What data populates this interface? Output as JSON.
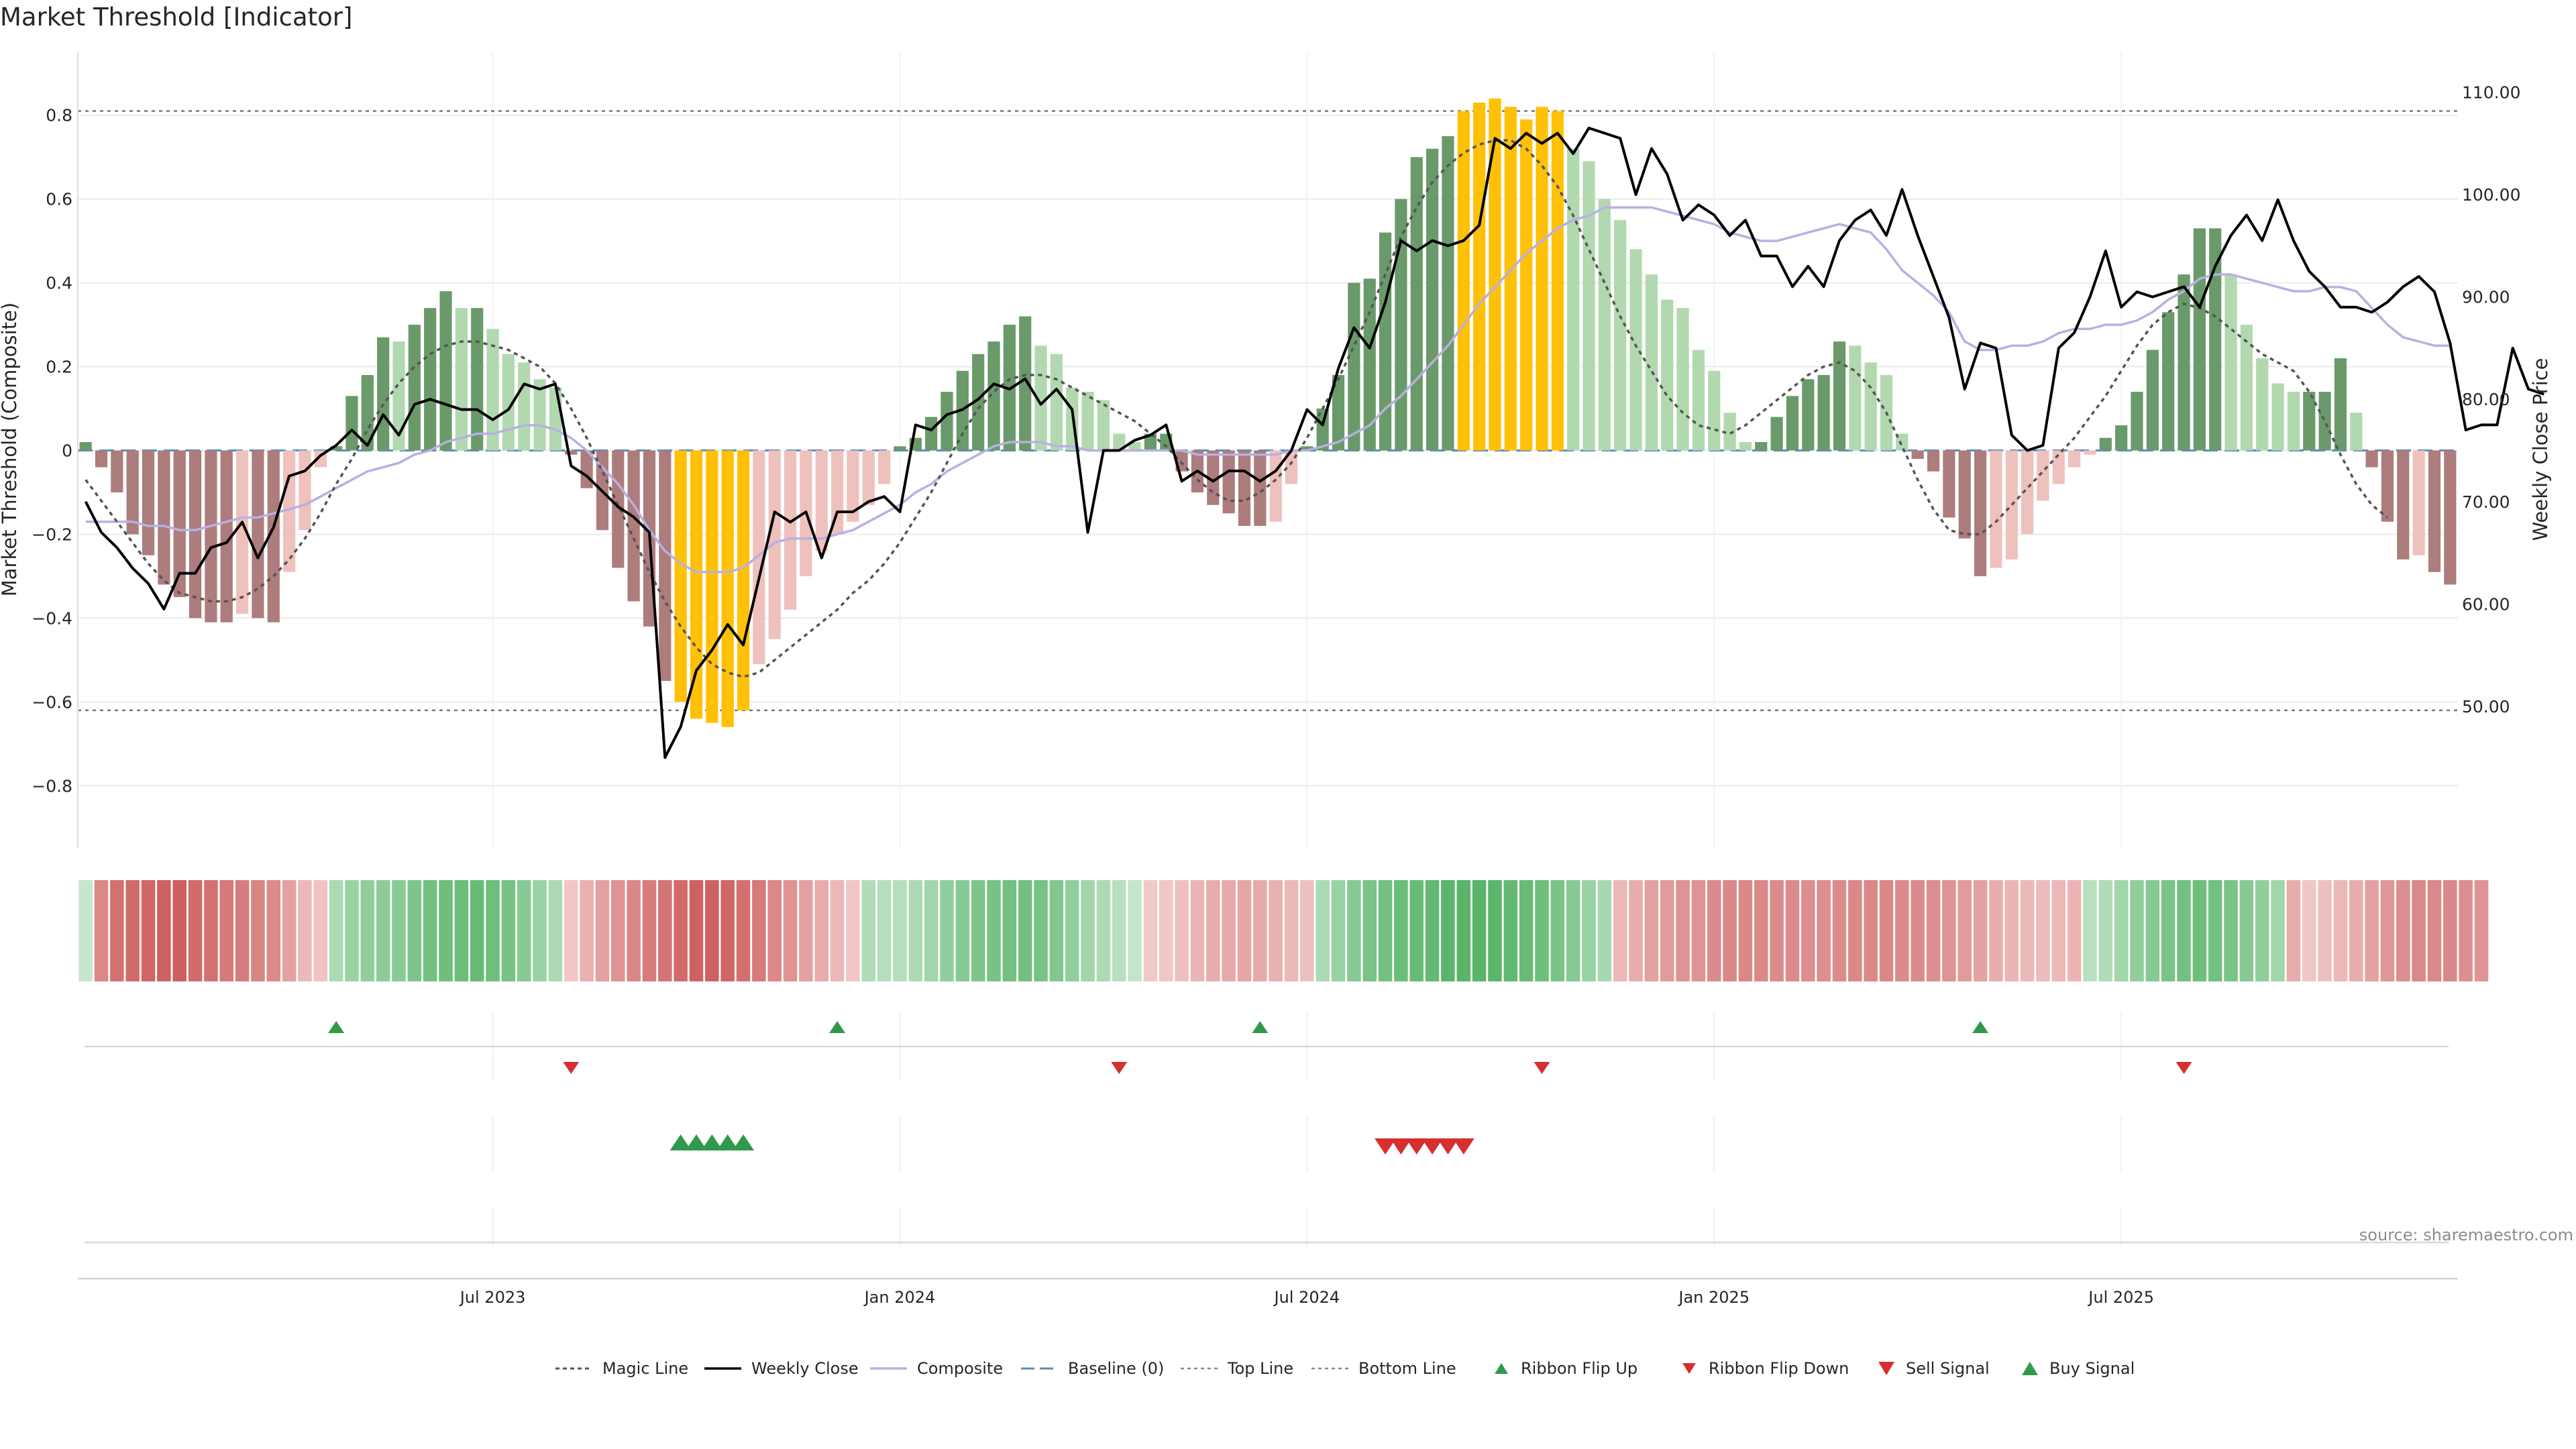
{
  "chart_data": {
    "type": "bar",
    "title": "Market Threshold [Indicator]",
    "ylabel": "Market Threshold (Composite)",
    "y2label": "Weekly Close Price",
    "ylim": [
      -0.95,
      0.95
    ],
    "y2lim": [
      36.1,
      113.9
    ],
    "yticks": [
      {
        "v": 0.8,
        "label": "0.8"
      },
      {
        "v": 0.6,
        "label": "0.6"
      },
      {
        "v": 0.4,
        "label": "0.4"
      },
      {
        "v": 0.2,
        "label": "0.2"
      },
      {
        "v": 0,
        "label": "0"
      },
      {
        "v": -0.2,
        "label": "−0.2"
      },
      {
        "v": -0.4,
        "label": "−0.4"
      },
      {
        "v": -0.6,
        "label": "−0.6"
      },
      {
        "v": -0.8,
        "label": "−0.8"
      }
    ],
    "y2ticks": [
      {
        "v": 110,
        "label": "110.00"
      },
      {
        "v": 100,
        "label": "100.00"
      },
      {
        "v": 90,
        "label": "90.00"
      },
      {
        "v": 80,
        "label": "80.00"
      },
      {
        "v": 70,
        "label": "70.00"
      },
      {
        "v": 60,
        "label": "60.00"
      },
      {
        "v": 50,
        "label": "50.00"
      }
    ],
    "xticks": [
      {
        "week": 26,
        "label": "Jul 2023"
      },
      {
        "week": 52,
        "label": "Jan 2024"
      },
      {
        "week": 78,
        "label": "Jul 2024"
      },
      {
        "week": 104,
        "label": "Jan 2025"
      },
      {
        "week": 130,
        "label": "Jul 2025"
      }
    ],
    "top_line": 0.81,
    "bottom_line": -0.62,
    "baseline": 0,
    "composite_bars": [
      0.02,
      -0.04,
      -0.1,
      -0.2,
      -0.25,
      -0.32,
      -0.35,
      -0.4,
      -0.41,
      -0.41,
      -0.39,
      -0.4,
      -0.41,
      -0.29,
      -0.19,
      -0.04,
      0.01,
      0.13,
      0.18,
      0.27,
      0.26,
      0.3,
      0.34,
      0.38,
      0.34,
      0.34,
      0.29,
      0.23,
      0.21,
      0.17,
      0.15,
      -0.01,
      -0.09,
      -0.19,
      -0.28,
      -0.36,
      -0.42,
      -0.55,
      -0.6,
      -0.64,
      -0.65,
      -0.66,
      -0.62,
      -0.51,
      -0.45,
      -0.38,
      -0.3,
      -0.24,
      -0.2,
      -0.17,
      -0.13,
      -0.08,
      0.01,
      0.03,
      0.08,
      0.14,
      0.19,
      0.23,
      0.26,
      0.3,
      0.32,
      0.25,
      0.23,
      0.15,
      0.14,
      0.12,
      0.04,
      0.02,
      0.04,
      0.04,
      -0.05,
      -0.1,
      -0.13,
      -0.15,
      -0.18,
      -0.18,
      -0.17,
      -0.08,
      0.01,
      0.1,
      0.18,
      0.4,
      0.41,
      0.52,
      0.6,
      0.7,
      0.72,
      0.75,
      0.81,
      0.83,
      0.84,
      0.82,
      0.79,
      0.82,
      0.81,
      0.72,
      0.69,
      0.6,
      0.55,
      0.48,
      0.42,
      0.36,
      0.34,
      0.24,
      0.19,
      0.09,
      0.02,
      0.02,
      0.08,
      0.13,
      0.17,
      0.18,
      0.26,
      0.25,
      0.21,
      0.18,
      0.04,
      -0.02,
      -0.05,
      -0.16,
      -0.21,
      -0.3,
      -0.28,
      -0.26,
      -0.2,
      -0.12,
      -0.08,
      -0.04,
      -0.01,
      0.03,
      0.06,
      0.14,
      0.24,
      0.33,
      0.42,
      0.53,
      0.53,
      0.42,
      0.3,
      0.22,
      0.16,
      0.14,
      0.14,
      0.14,
      0.22,
      0.09,
      -0.04,
      -0.17,
      -0.26,
      -0.25,
      -0.29,
      -0.32
    ],
    "weekly_close": [
      70,
      67,
      65.5,
      63.5,
      62,
      59.5,
      63,
      63,
      65.5,
      66,
      68,
      64.5,
      67.5,
      72.5,
      73,
      74.5,
      75.5,
      77,
      75.5,
      78.5,
      76.5,
      79.5,
      80,
      79.5,
      79,
      79,
      78,
      79,
      81.5,
      81,
      81.5,
      73.5,
      72.5,
      71,
      69.5,
      68.5,
      67,
      45,
      48,
      53.5,
      55.5,
      58,
      56,
      62.5,
      69,
      68,
      69,
      64.5,
      69,
      69,
      70,
      70.5,
      69,
      77.5,
      77,
      78.5,
      79,
      80,
      81.5,
      81,
      82,
      79.5,
      81,
      79,
      67,
      75,
      75,
      76,
      76.5,
      77.5,
      72,
      73,
      72,
      73,
      73,
      72,
      73,
      75,
      79,
      77.5,
      83,
      87,
      85,
      89.5,
      95.5,
      94.5,
      95.5,
      95,
      95.5,
      97,
      105.5,
      104.5,
      106,
      105,
      106,
      104,
      106.5,
      106,
      105.5,
      100,
      104.5,
      102,
      97.5,
      99,
      98,
      96,
      97.5,
      94,
      94,
      91,
      93,
      91,
      95.5,
      97.5,
      98.5,
      96,
      100.5,
      96,
      92,
      88,
      81,
      85.5,
      85,
      76.5,
      75,
      75.5,
      85,
      86.5,
      90,
      94.5,
      89,
      90.5,
      90,
      90.5,
      91,
      89,
      93,
      96,
      98,
      95.5,
      99.5,
      95.5,
      92.5,
      91,
      89,
      89,
      88.5,
      89.5,
      91,
      92,
      90.5,
      85.5,
      77,
      77.5,
      77.5,
      85,
      81,
      80.5
    ],
    "composite_line": [
      -0.17,
      -0.17,
      -0.17,
      -0.17,
      -0.18,
      -0.18,
      -0.19,
      -0.19,
      -0.18,
      -0.17,
      -0.16,
      -0.16,
      -0.15,
      -0.14,
      -0.13,
      -0.11,
      -0.09,
      -0.07,
      -0.05,
      -0.04,
      -0.03,
      -0.01,
      0,
      0.02,
      0.03,
      0.04,
      0.04,
      0.05,
      0.06,
      0.06,
      0.05,
      0.03,
      0,
      -0.04,
      -0.08,
      -0.13,
      -0.19,
      -0.24,
      -0.27,
      -0.29,
      -0.29,
      -0.29,
      -0.28,
      -0.25,
      -0.22,
      -0.21,
      -0.21,
      -0.21,
      -0.2,
      -0.19,
      -0.17,
      -0.15,
      -0.13,
      -0.1,
      -0.08,
      -0.05,
      -0.03,
      -0.01,
      0.01,
      0.02,
      0.02,
      0.02,
      0.01,
      0.01,
      0,
      0,
      0,
      0,
      0,
      0,
      0,
      -0.01,
      -0.01,
      -0.01,
      -0.01,
      -0.01,
      -0.01,
      0,
      0,
      0.01,
      0.02,
      0.04,
      0.06,
      0.1,
      0.13,
      0.17,
      0.21,
      0.25,
      0.3,
      0.35,
      0.39,
      0.43,
      0.47,
      0.5,
      0.53,
      0.55,
      0.56,
      0.58,
      0.58,
      0.58,
      0.58,
      0.57,
      0.56,
      0.55,
      0.54,
      0.52,
      0.51,
      0.5,
      0.5,
      0.51,
      0.52,
      0.53,
      0.54,
      0.53,
      0.52,
      0.48,
      0.43,
      0.4,
      0.37,
      0.33,
      0.26,
      0.24,
      0.24,
      0.25,
      0.25,
      0.26,
      0.28,
      0.29,
      0.29,
      0.3,
      0.3,
      0.31,
      0.33,
      0.36,
      0.38,
      0.41,
      0.42,
      0.42,
      0.41,
      0.4,
      0.39,
      0.38,
      0.38,
      0.39,
      0.39,
      0.38,
      0.34,
      0.3,
      0.27,
      0.26,
      0.25,
      0.25
    ],
    "magic_line": [
      -0.07,
      -0.12,
      -0.17,
      -0.22,
      -0.27,
      -0.31,
      -0.34,
      -0.35,
      -0.36,
      -0.36,
      -0.35,
      -0.33,
      -0.3,
      -0.26,
      -0.21,
      -0.15,
      -0.08,
      -0.02,
      0.05,
      0.11,
      0.16,
      0.2,
      0.23,
      0.25,
      0.26,
      0.26,
      0.25,
      0.24,
      0.22,
      0.2,
      0.16,
      0.1,
      0.03,
      -0.05,
      -0.13,
      -0.21,
      -0.29,
      -0.36,
      -0.42,
      -0.47,
      -0.51,
      -0.53,
      -0.54,
      -0.53,
      -0.5,
      -0.47,
      -0.44,
      -0.41,
      -0.38,
      -0.34,
      -0.31,
      -0.27,
      -0.22,
      -0.16,
      -0.1,
      -0.03,
      0.04,
      0.1,
      0.14,
      0.17,
      0.18,
      0.18,
      0.17,
      0.15,
      0.13,
      0.11,
      0.09,
      0.07,
      0.04,
      0.01,
      -0.03,
      -0.07,
      -0.1,
      -0.12,
      -0.12,
      -0.1,
      -0.07,
      -0.03,
      0.03,
      0.1,
      0.17,
      0.25,
      0.33,
      0.42,
      0.51,
      0.58,
      0.64,
      0.68,
      0.71,
      0.73,
      0.74,
      0.74,
      0.72,
      0.68,
      0.63,
      0.56,
      0.48,
      0.4,
      0.32,
      0.25,
      0.19,
      0.13,
      0.09,
      0.06,
      0.05,
      0.04,
      0.06,
      0.09,
      0.12,
      0.15,
      0.18,
      0.2,
      0.21,
      0.19,
      0.15,
      0.09,
      0.01,
      -0.07,
      -0.14,
      -0.19,
      -0.2,
      -0.2,
      -0.17,
      -0.13,
      -0.09,
      -0.05,
      -0.01,
      0.03,
      0.08,
      0.13,
      0.19,
      0.25,
      0.3,
      0.33,
      0.35,
      0.34,
      0.32,
      0.29,
      0.26,
      0.23,
      0.21,
      0.19,
      0.14,
      0.07,
      -0.01,
      -0.08,
      -0.13,
      -0.16
    ],
    "ribbon_strength": [
      0.2,
      0.62,
      0.78,
      0.82,
      0.85,
      0.88,
      0.9,
      0.82,
      0.78,
      0.72,
      0.7,
      0.65,
      0.6,
      0.45,
      0.3,
      0.22,
      0.38,
      0.5,
      0.55,
      0.58,
      0.6,
      0.68,
      0.75,
      0.78,
      0.8,
      0.82,
      0.78,
      0.72,
      0.62,
      0.5,
      0.38,
      0.2,
      0.35,
      0.45,
      0.55,
      0.62,
      0.7,
      0.75,
      0.82,
      0.88,
      0.88,
      0.85,
      0.78,
      0.72,
      0.62,
      0.55,
      0.45,
      0.38,
      0.3,
      0.2,
      0.35,
      0.32,
      0.32,
      0.38,
      0.45,
      0.55,
      0.62,
      0.68,
      0.72,
      0.75,
      0.75,
      0.72,
      0.65,
      0.55,
      0.45,
      0.38,
      0.3,
      0.22,
      0.18,
      0.2,
      0.25,
      0.32,
      0.38,
      0.4,
      0.42,
      0.4,
      0.35,
      0.3,
      0.25,
      0.38,
      0.5,
      0.62,
      0.7,
      0.75,
      0.8,
      0.82,
      0.85,
      0.9,
      0.92,
      0.92,
      0.9,
      0.85,
      0.82,
      0.78,
      0.7,
      0.62,
      0.5,
      0.4,
      0.3,
      0.38,
      0.45,
      0.5,
      0.55,
      0.55,
      0.6,
      0.62,
      0.62,
      0.62,
      0.6,
      0.6,
      0.58,
      0.58,
      0.6,
      0.62,
      0.62,
      0.62,
      0.6,
      0.6,
      0.58,
      0.55,
      0.5,
      0.45,
      0.38,
      0.32,
      0.3,
      0.28,
      0.3,
      0.32,
      0.3,
      0.35,
      0.45,
      0.55,
      0.62,
      0.7,
      0.75,
      0.78,
      0.75,
      0.7,
      0.62,
      0.55,
      0.45,
      0.38,
      0.2,
      0.25,
      0.3,
      0.38,
      0.45,
      0.52,
      0.58,
      0.62,
      0.62,
      0.62,
      0.58,
      0.55
    ],
    "ribbon_color_sign": [
      1,
      -1,
      -1,
      -1,
      -1,
      -1,
      -1,
      -1,
      -1,
      -1,
      -1,
      -1,
      -1,
      -1,
      -1,
      -1,
      1,
      1,
      1,
      1,
      1,
      1,
      1,
      1,
      1,
      1,
      1,
      1,
      1,
      1,
      1,
      -1,
      -1,
      -1,
      -1,
      -1,
      -1,
      -1,
      -1,
      -1,
      -1,
      -1,
      -1,
      -1,
      -1,
      -1,
      -1,
      -1,
      -1,
      -1,
      1,
      1,
      1,
      1,
      1,
      1,
      1,
      1,
      1,
      1,
      1,
      1,
      1,
      1,
      1,
      1,
      1,
      1,
      -1,
      -1,
      -1,
      -1,
      -1,
      -1,
      -1,
      -1,
      -1,
      -1,
      -1,
      1,
      1,
      1,
      1,
      1,
      1,
      1,
      1,
      1,
      1,
      1,
      1,
      1,
      1,
      1,
      1,
      1,
      1,
      1,
      -1,
      -1,
      -1,
      -1,
      -1,
      -1,
      -1,
      -1,
      -1,
      -1,
      -1,
      -1,
      -1,
      -1,
      -1,
      -1,
      -1,
      -1,
      -1,
      -1,
      -1,
      -1,
      -1,
      -1,
      -1,
      -1,
      -1,
      -1,
      -1,
      -1,
      1,
      1,
      1,
      1,
      1,
      1,
      1,
      1,
      1,
      1,
      1,
      1,
      1,
      -1,
      -1,
      -1,
      -1,
      -1,
      -1,
      -1,
      -1,
      -1,
      -1,
      -1
    ],
    "ribbon_flip_up_weeks": [
      16,
      48,
      75,
      121
    ],
    "ribbon_flip_down_weeks": [
      31,
      66,
      93,
      134
    ],
    "buy_signal_weeks": [
      38,
      39,
      40,
      41,
      42
    ],
    "sell_signal_weeks": [
      83,
      84,
      85,
      86,
      87,
      88
    ],
    "legend": [
      "Magic Line",
      "Weekly Close",
      "Composite",
      "Baseline (0)",
      "Top Line",
      "Bottom Line",
      "Ribbon Flip Up",
      "Ribbon Flip Down",
      "Sell Signal",
      "Buy Signal"
    ],
    "source": "source: sharemaestro.com",
    "colors": {
      "bar_strong_pos": "#6a9a6a",
      "bar_weak_pos": "#b2d8b0",
      "bar_strong_neg": "#ad7c7c",
      "bar_weak_neg": "#eec1bd",
      "bar_extreme": "#ffc107",
      "weekly_close": "#000000",
      "composite": "#b8b0e0",
      "magic": "#555555",
      "baseline": "#5b8db8",
      "grid": "#ebebeb",
      "flip_up": "#2e9a4a",
      "flip_down": "#d62f2f"
    }
  }
}
